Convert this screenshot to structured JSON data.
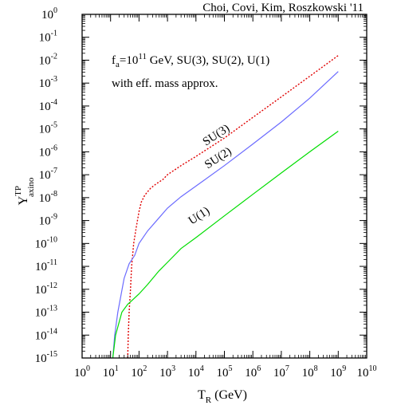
{
  "chart_data": {
    "type": "line",
    "credit": "Choi, Covi, Kim, Roszkowski '11",
    "xlabel": {
      "main": "T",
      "sub": "R",
      "unit": " (GeV)"
    },
    "ylabel": {
      "main": "Y",
      "sup": "TP",
      "sub": "axino"
    },
    "x_scale": "log",
    "y_scale": "log",
    "xlim": [
      1,
      10000000000
    ],
    "ylim": [
      1e-15,
      1
    ],
    "x_ticks": [
      {
        "value": 1,
        "base": "10",
        "exp": "0"
      },
      {
        "value": 10,
        "base": "10",
        "exp": "1"
      },
      {
        "value": 100,
        "base": "10",
        "exp": "2"
      },
      {
        "value": 1000,
        "base": "10",
        "exp": "3"
      },
      {
        "value": 10000,
        "base": "10",
        "exp": "4"
      },
      {
        "value": 100000,
        "base": "10",
        "exp": "5"
      },
      {
        "value": 1000000,
        "base": "10",
        "exp": "6"
      },
      {
        "value": 10000000,
        "base": "10",
        "exp": "7"
      },
      {
        "value": 100000000,
        "base": "10",
        "exp": "8"
      },
      {
        "value": 1000000000,
        "base": "10",
        "exp": "9"
      },
      {
        "value": 10000000000,
        "base": "10",
        "exp": "10"
      }
    ],
    "y_ticks": [
      {
        "value": 1e-15,
        "base": "10",
        "exp": "-15"
      },
      {
        "value": 1e-14,
        "base": "10",
        "exp": "-14"
      },
      {
        "value": 1e-13,
        "base": "10",
        "exp": "-13"
      },
      {
        "value": 1e-12,
        "base": "10",
        "exp": "-12"
      },
      {
        "value": 1e-11,
        "base": "10",
        "exp": "-11"
      },
      {
        "value": 1e-10,
        "base": "10",
        "exp": "-10"
      },
      {
        "value": 1e-09,
        "base": "10",
        "exp": "-9"
      },
      {
        "value": 1e-08,
        "base": "10",
        "exp": "-8"
      },
      {
        "value": 1e-07,
        "base": "10",
        "exp": "-7"
      },
      {
        "value": 1e-06,
        "base": "10",
        "exp": "-6"
      },
      {
        "value": 1e-05,
        "base": "10",
        "exp": "-5"
      },
      {
        "value": 0.0001,
        "base": "10",
        "exp": "-4"
      },
      {
        "value": 0.001,
        "base": "10",
        "exp": "-3"
      },
      {
        "value": 0.01,
        "base": "10",
        "exp": "-2"
      },
      {
        "value": 0.1,
        "base": "10",
        "exp": "-1"
      },
      {
        "value": 1,
        "base": "10",
        "exp": "0"
      }
    ],
    "annotation": {
      "line1_a": "f",
      "line1_a_sub": "a",
      "line1_b": "=10",
      "line1_b_sup": "11",
      "line1_c": " GeV, SU(3), SU(2), U(1)",
      "line2": "with eff. mass approx."
    },
    "series": [
      {
        "name": "SU(3)",
        "color": "#e00000",
        "dash": "dotted",
        "label_at": {
          "x": 60000,
          "y": 4e-06,
          "angle": -33
        },
        "points": [
          [
            40,
            1e-15
          ],
          [
            42,
            1e-14
          ],
          [
            45,
            1e-13
          ],
          [
            50,
            1e-12
          ],
          [
            55,
            1e-11
          ],
          [
            65,
            1e-10
          ],
          [
            80,
            5e-10
          ],
          [
            100,
            2.5e-09
          ],
          [
            120,
            6.3e-09
          ],
          [
            160,
            1.3e-08
          ],
          [
            250,
            2.5e-08
          ],
          [
            400,
            4e-08
          ],
          [
            700,
            6.3e-08
          ],
          [
            1000,
            1e-07
          ],
          [
            3000,
            2.5e-07
          ],
          [
            10000,
            6.3e-07
          ],
          [
            100000,
            4e-06
          ],
          [
            1000000,
            3.2e-05
          ],
          [
            10000000,
            0.00025
          ],
          [
            100000000,
            0.002
          ],
          [
            1000000000,
            0.016
          ]
        ]
      },
      {
        "name": "SU(2)",
        "color": "#6b6bff",
        "dash": "solid",
        "label_at": {
          "x": 70000,
          "y": 4e-07,
          "angle": -33
        },
        "points": [
          [
            12,
            1e-15
          ],
          [
            14,
            1e-14
          ],
          [
            18,
            1e-13
          ],
          [
            30,
            3e-12
          ],
          [
            45,
            1.3e-11
          ],
          [
            70,
            3e-11
          ],
          [
            100,
            1e-10
          ],
          [
            200,
            3.5e-10
          ],
          [
            500,
            1.3e-09
          ],
          [
            1000,
            3.5e-09
          ],
          [
            3000,
            1.1e-08
          ],
          [
            10000,
            3.2e-08
          ],
          [
            100000,
            2.5e-07
          ],
          [
            1000000,
            2.2e-06
          ],
          [
            10000000,
            2e-05
          ],
          [
            100000000,
            0.00022
          ],
          [
            1000000000,
            0.0032
          ]
        ]
      },
      {
        "name": "U(1)",
        "color": "#00dd00",
        "dash": "solid",
        "label_at": {
          "x": 15000,
          "y": 1.2e-09,
          "angle": -33
        },
        "points": [
          [
            12,
            1e-15
          ],
          [
            15,
            1e-14
          ],
          [
            25,
            1e-13
          ],
          [
            40,
            2.2e-13
          ],
          [
            60,
            3.5e-13
          ],
          [
            100,
            6.3e-13
          ],
          [
            200,
            1.6e-12
          ],
          [
            500,
            6.3e-12
          ],
          [
            1000,
            1.5e-11
          ],
          [
            3000,
            6e-11
          ],
          [
            10000,
            1.8e-10
          ],
          [
            100000,
            1.6e-09
          ],
          [
            1000000,
            1.4e-08
          ],
          [
            10000000,
            1.2e-07
          ],
          [
            100000000,
            1e-06
          ],
          [
            1000000000,
            8e-06
          ]
        ]
      }
    ]
  }
}
